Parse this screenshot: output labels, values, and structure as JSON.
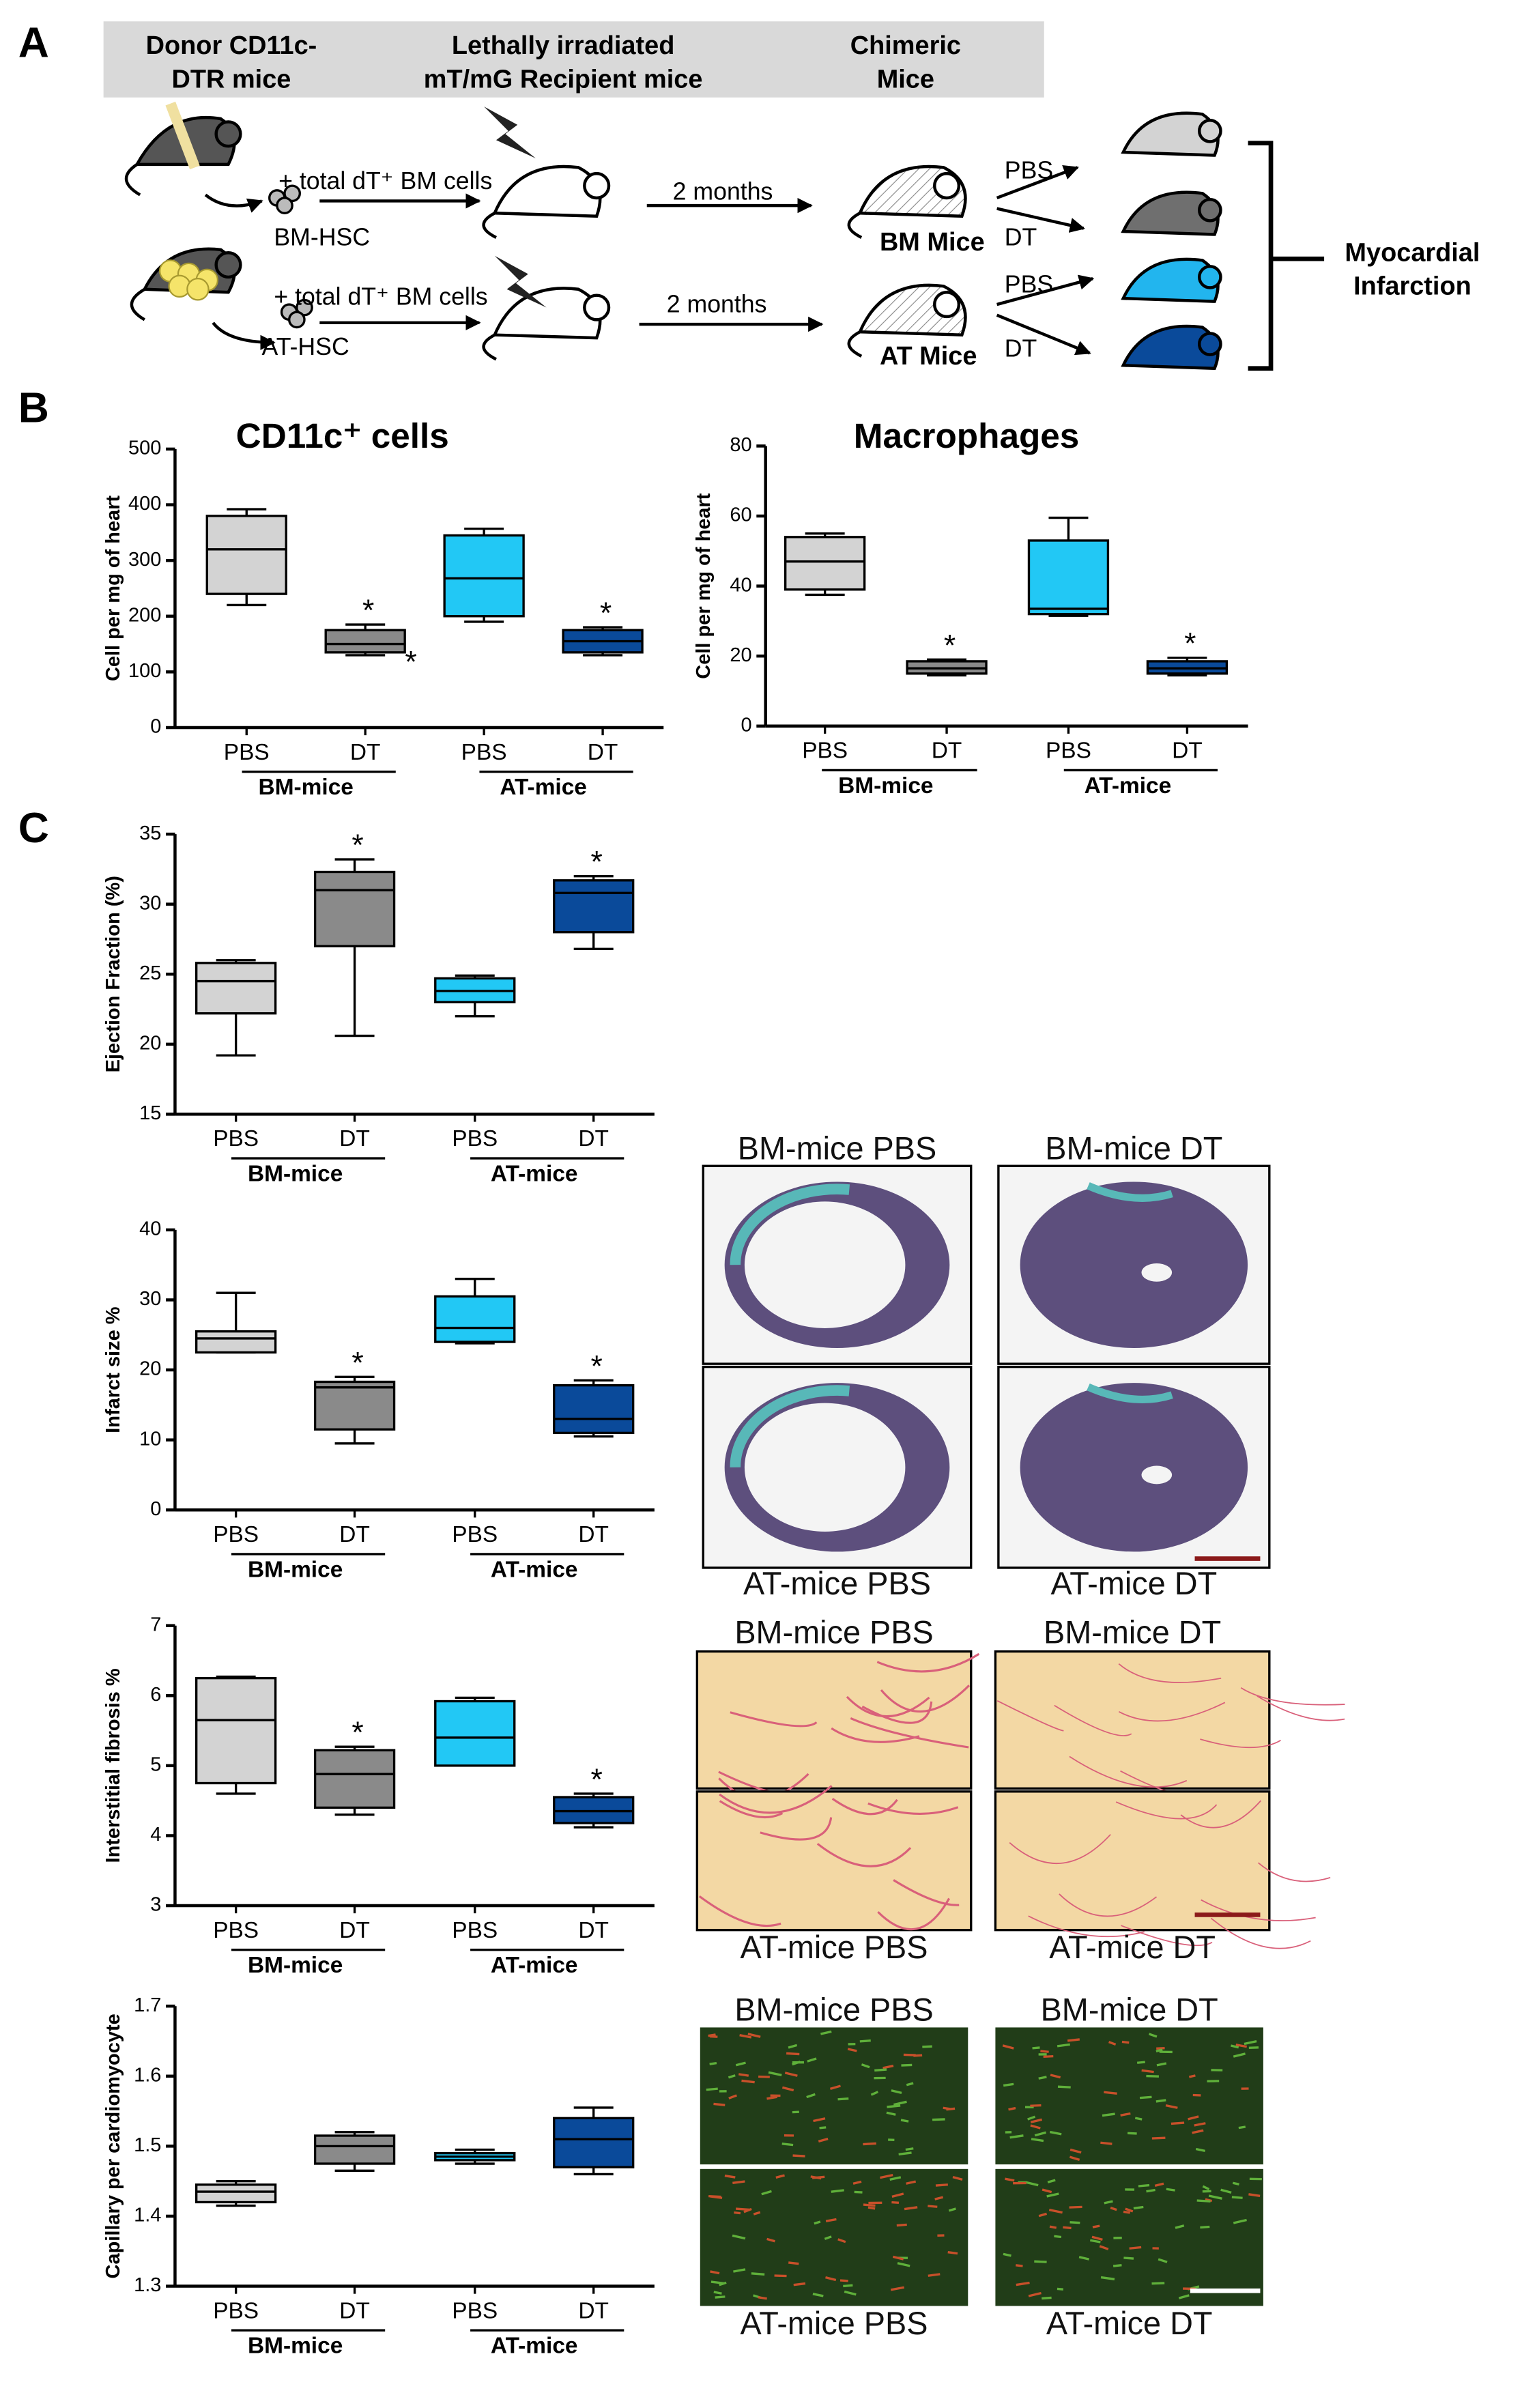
{
  "panel_labels": [
    "A",
    "B",
    "C"
  ],
  "schematic": {
    "header": [
      [
        "Donor CD11c-",
        "DTR mice"
      ],
      [
        "Lethally irradiated",
        "mT/mG Recipient mice"
      ],
      [
        "Chimeric",
        "Mice"
      ]
    ],
    "rows": [
      {
        "cells": "+ total dT⁺ BM cells",
        "source": "BM-HSC",
        "time": "2 months",
        "group": "BM Mice",
        "treatments": [
          "PBS",
          "DT"
        ]
      },
      {
        "cells": "+ total dT⁺ BM cells",
        "source": "AT-HSC",
        "time": "2 months",
        "group": "AT Mice",
        "treatments": [
          "PBS",
          "DT"
        ]
      }
    ],
    "outcome": [
      "Myocardial",
      "Infarction"
    ]
  },
  "chart_data": [
    {
      "type": "box",
      "title": "CD11c⁺ cells",
      "ylabel": "Cell per mg of heart",
      "ylim": [
        0,
        500
      ],
      "yticks": [
        0,
        100,
        200,
        300,
        400,
        500
      ],
      "categories": [
        "PBS",
        "DT",
        "PBS",
        "DT"
      ],
      "groups": [
        "BM-mice",
        "AT-mice"
      ],
      "boxes": [
        {
          "color": "#d3d3d3",
          "min": 220,
          "q1": 240,
          "median": 320,
          "q3": 380,
          "max": 392
        },
        {
          "color": "#8a8a8a",
          "min": 130,
          "q1": 135,
          "median": 150,
          "q3": 175,
          "max": 185,
          "significance": "*",
          "outliers": [
            {
              "value": 125,
              "label": "*"
            }
          ]
        },
        {
          "color": "#22c8f5",
          "min": 190,
          "q1": 200,
          "median": 268,
          "q3": 345,
          "max": 357
        },
        {
          "color": "#0a4a9a",
          "min": 130,
          "q1": 135,
          "median": 155,
          "q3": 175,
          "max": 180,
          "significance": "*"
        }
      ]
    },
    {
      "type": "box",
      "title": "Macrophages",
      "ylabel": "Cell per mg of heart",
      "ylim": [
        0,
        80
      ],
      "yticks": [
        0,
        20,
        40,
        60,
        80
      ],
      "categories": [
        "PBS",
        "DT",
        "PBS",
        "DT"
      ],
      "groups": [
        "BM-mice",
        "AT-mice"
      ],
      "boxes": [
        {
          "color": "#d3d3d3",
          "min": 37.5,
          "q1": 39,
          "median": 47,
          "q3": 54,
          "max": 55
        },
        {
          "color": "#8a8a8a",
          "min": 14.5,
          "q1": 15,
          "median": 16.5,
          "q3": 18.5,
          "max": 19,
          "significance": "*"
        },
        {
          "color": "#22c8f5",
          "min": 31.5,
          "q1": 32,
          "median": 33.5,
          "q3": 53,
          "max": 59.5
        },
        {
          "color": "#0a4a9a",
          "min": 14.5,
          "q1": 15,
          "median": 16.5,
          "q3": 18.5,
          "max": 19.5,
          "significance": "*"
        }
      ]
    },
    {
      "type": "box",
      "ylabel": "Ejection Fraction (%)",
      "ylim": [
        15,
        35
      ],
      "yticks": [
        15,
        20,
        25,
        30,
        35
      ],
      "categories": [
        "PBS",
        "DT",
        "PBS",
        "DT"
      ],
      "groups": [
        "BM-mice",
        "AT-mice"
      ],
      "boxes": [
        {
          "color": "#d3d3d3",
          "min": 19.2,
          "q1": 22.2,
          "median": 24.5,
          "q3": 25.8,
          "max": 26
        },
        {
          "color": "#8a8a8a",
          "min": 20.6,
          "q1": 27,
          "median": 31,
          "q3": 32.3,
          "max": 33.2,
          "significance": "*"
        },
        {
          "color": "#22c8f5",
          "min": 22,
          "q1": 23,
          "median": 23.8,
          "q3": 24.7,
          "max": 24.9
        },
        {
          "color": "#0a4a9a",
          "min": 26.8,
          "q1": 28,
          "median": 30.8,
          "q3": 31.7,
          "max": 32,
          "significance": "*"
        }
      ]
    },
    {
      "type": "box",
      "ylabel": "Infarct size %",
      "ylim": [
        0,
        40
      ],
      "yticks": [
        0,
        10,
        20,
        30,
        40
      ],
      "categories": [
        "PBS",
        "DT",
        "PBS",
        "DT"
      ],
      "groups": [
        "BM-mice",
        "AT-mice"
      ],
      "boxes": [
        {
          "color": "#d3d3d3",
          "min": 22.5,
          "q1": 22.5,
          "median": 24.5,
          "q3": 25.5,
          "max": 31
        },
        {
          "color": "#8a8a8a",
          "min": 9.5,
          "q1": 11.5,
          "median": 17.5,
          "q3": 18.3,
          "max": 19,
          "significance": "*"
        },
        {
          "color": "#22c8f5",
          "min": 23.8,
          "q1": 24,
          "median": 26,
          "q3": 30.5,
          "max": 33
        },
        {
          "color": "#0a4a9a",
          "min": 10.5,
          "q1": 11,
          "median": 13,
          "q3": 17.8,
          "max": 18.5,
          "significance": "*"
        }
      ]
    },
    {
      "type": "box",
      "ylabel": "Interstitial fibrosis %",
      "ylim": [
        3,
        7
      ],
      "yticks": [
        3,
        4,
        5,
        6,
        7
      ],
      "categories": [
        "PBS",
        "DT",
        "PBS",
        "DT"
      ],
      "groups": [
        "BM-mice",
        "AT-mice"
      ],
      "boxes": [
        {
          "color": "#d3d3d3",
          "min": 4.6,
          "q1": 4.75,
          "median": 5.65,
          "q3": 6.25,
          "max": 6.27
        },
        {
          "color": "#8a8a8a",
          "min": 4.3,
          "q1": 4.4,
          "median": 4.88,
          "q3": 5.22,
          "max": 5.27,
          "significance": "*"
        },
        {
          "color": "#22c8f5",
          "min": 5.0,
          "q1": 5.0,
          "median": 5.4,
          "q3": 5.92,
          "max": 5.97
        },
        {
          "color": "#0a4a9a",
          "min": 4.12,
          "q1": 4.18,
          "median": 4.35,
          "q3": 4.55,
          "max": 4.6,
          "significance": "*"
        }
      ]
    },
    {
      "type": "box",
      "ylabel": "Capillary per cardiomyocyte",
      "ylim": [
        1.3,
        1.7
      ],
      "yticks": [
        1.3,
        1.4,
        1.5,
        1.6,
        1.7
      ],
      "categories": [
        "PBS",
        "DT",
        "PBS",
        "DT"
      ],
      "groups": [
        "BM-mice",
        "AT-mice"
      ],
      "boxes": [
        {
          "color": "#d3d3d3",
          "min": 1.415,
          "q1": 1.42,
          "median": 1.435,
          "q3": 1.445,
          "max": 1.45
        },
        {
          "color": "#8a8a8a",
          "min": 1.465,
          "q1": 1.475,
          "median": 1.5,
          "q3": 1.515,
          "max": 1.52
        },
        {
          "color": "#22c8f5",
          "min": 1.475,
          "q1": 1.48,
          "median": 1.485,
          "q3": 1.49,
          "max": 1.495
        },
        {
          "color": "#0a4a9a",
          "min": 1.46,
          "q1": 1.47,
          "median": 1.51,
          "q3": 1.54,
          "max": 1.555
        }
      ]
    }
  ],
  "micrographs": [
    {
      "captions": [
        "BM-mice PBS",
        "BM-mice DT",
        "AT-mice PBS",
        "AT-mice DT"
      ]
    },
    {
      "captions": [
        "BM-mice PBS",
        "BM-mice DT",
        "AT-mice PBS",
        "AT-mice DT"
      ]
    },
    {
      "captions": [
        "BM-mice PBS",
        "BM-mice DT",
        "AT-mice PBS",
        "AT-mice DT"
      ]
    }
  ]
}
